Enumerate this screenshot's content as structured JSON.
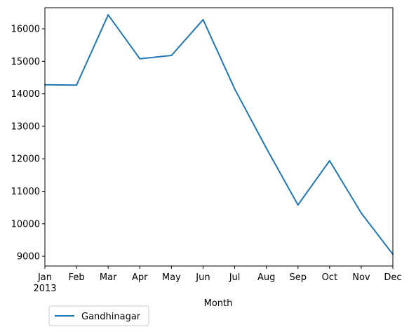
{
  "chart_data": {
    "type": "line",
    "title": "",
    "xlabel": "Month",
    "ylabel": "",
    "x": [
      "Jan",
      "Feb",
      "Mar",
      "Apr",
      "May",
      "Jun",
      "Jul",
      "Aug",
      "Sep",
      "Oct",
      "Nov",
      "Dec"
    ],
    "x_year_label": "2013",
    "series": [
      {
        "name": "Gandhinagar",
        "color": "#1f77b4",
        "values": [
          14280,
          14270,
          16430,
          15080,
          15180,
          16280,
          14150,
          12330,
          10580,
          11940,
          10330,
          9060
        ]
      }
    ],
    "ylim": [
      8700,
      16650
    ],
    "yticks": [
      9000,
      10000,
      11000,
      12000,
      13000,
      14000,
      15000,
      16000
    ],
    "ytick_labels": [
      "9000",
      "10000",
      "11000",
      "12000",
      "13000",
      "14000",
      "15000",
      "16000"
    ],
    "grid": false,
    "legend_position": "below-left"
  }
}
